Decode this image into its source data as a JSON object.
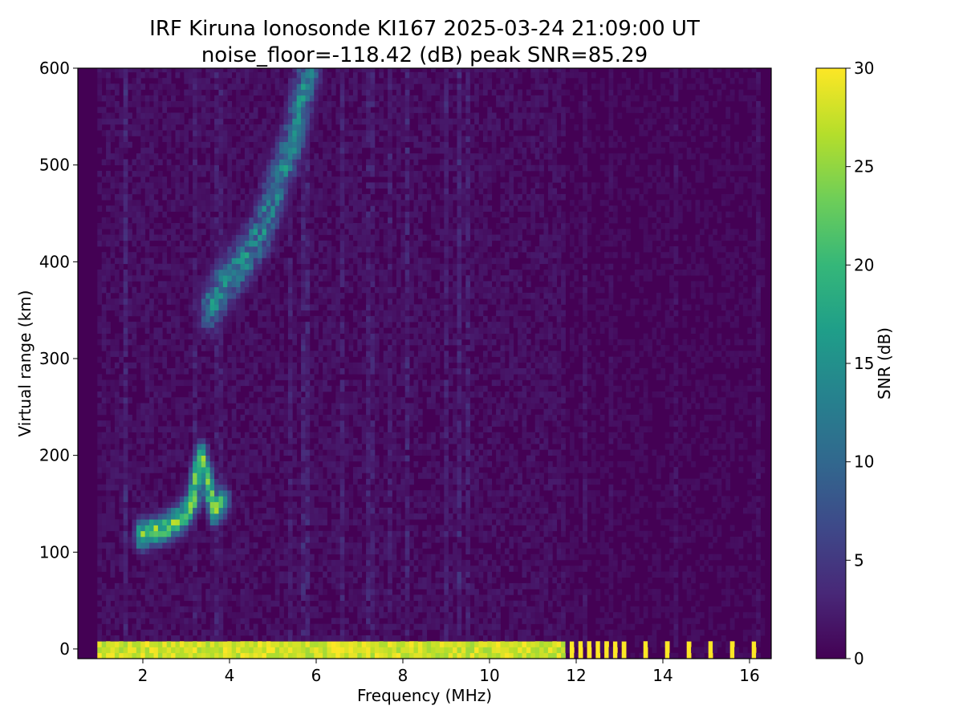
{
  "chart_data": {
    "type": "heatmap",
    "title": "IRF Kiruna Ionosonde KI167 2025-03-24 21:09:00  UT",
    "subtitle": "noise_floor=-118.42 (dB) peak SNR=85.29",
    "xlabel": "Frequency (MHz)",
    "ylabel": "Virtual range (km)",
    "xlim": [
      0.5,
      16.5
    ],
    "ylim": [
      -10,
      600
    ],
    "xticks": [
      2,
      4,
      6,
      8,
      10,
      12,
      14,
      16
    ],
    "yticks": [
      0,
      100,
      200,
      300,
      400,
      500,
      600
    ],
    "data_freq_range": [
      0.95,
      16.3
    ],
    "colorbar": {
      "label": "SNR (dB)",
      "range": [
        0,
        30
      ],
      "ticks": [
        0,
        5,
        10,
        15,
        20,
        25,
        30
      ],
      "colormap": "viridis",
      "colors": [
        "#440154",
        "#482878",
        "#3e4989",
        "#31688e",
        "#26828e",
        "#1f9e89",
        "#35b779",
        "#6ece58",
        "#b5de2b",
        "#fde725"
      ]
    },
    "echo_traces": [
      {
        "layer": "E",
        "points": [
          [
            1.9,
            115
          ],
          [
            2.3,
            120
          ],
          [
            2.6,
            125
          ],
          [
            2.9,
            135
          ],
          [
            3.1,
            150
          ],
          [
            3.2,
            175
          ],
          [
            3.3,
            195
          ],
          [
            3.6,
            140
          ],
          [
            3.8,
            150
          ]
        ],
        "peak_snr": 28
      },
      {
        "layer": "F",
        "points": [
          [
            3.5,
            350
          ],
          [
            3.9,
            380
          ],
          [
            4.3,
            400
          ],
          [
            4.7,
            430
          ],
          [
            5.0,
            470
          ],
          [
            5.4,
            520
          ],
          [
            5.7,
            580
          ],
          [
            5.8,
            600
          ]
        ],
        "peak_snr": 18
      },
      {
        "layer": "ground",
        "points": [
          [
            0.95,
            0
          ],
          [
            11.7,
            0
          ]
        ],
        "peak_snr": 30
      },
      {
        "layer": "ground-discrete",
        "freqs": [
          11.8,
          12.0,
          12.2,
          12.4,
          12.6,
          12.8,
          13.0,
          13.5,
          14.0,
          14.5,
          15.0,
          15.5,
          16.0
        ],
        "peak_snr": 30
      }
    ]
  }
}
